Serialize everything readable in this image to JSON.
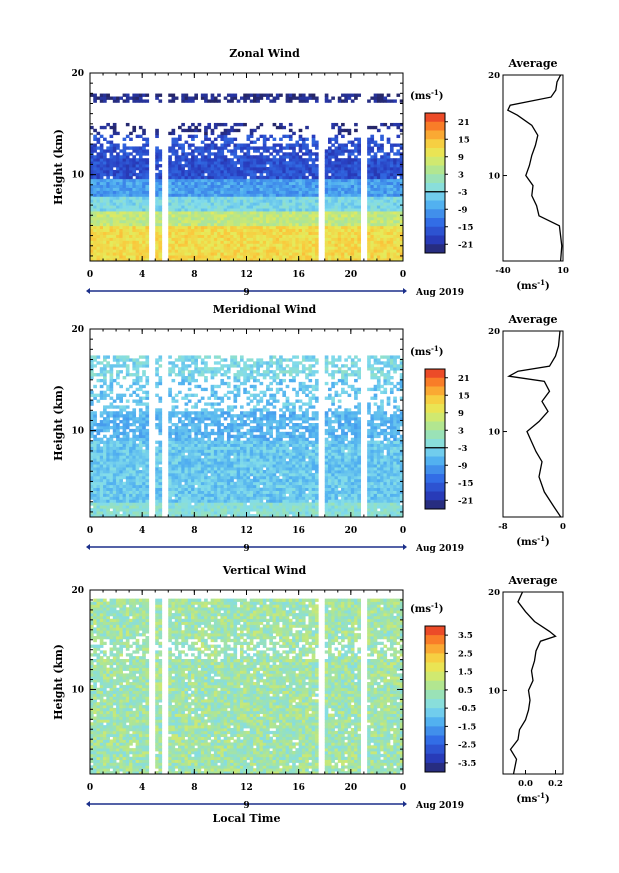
{
  "figure": {
    "date_label": "Aug 2019",
    "day_label": "9",
    "xlabel": "Local Time",
    "average_title": "Average",
    "ylabel": "Height (km)"
  },
  "chart_data": [
    {
      "type": "heatmap",
      "title": "Zonal Wind",
      "xlabel": "",
      "ylabel": "Height (km)",
      "x_ticks": [
        "0",
        "4",
        "8",
        "12",
        "16",
        "20",
        "0"
      ],
      "y_ticks": [
        "10",
        "20"
      ],
      "xlim": [
        0,
        24
      ],
      "ylim": [
        1.5,
        20
      ],
      "colorbar": {
        "unit_label": "(ms",
        "unit_exp": "-1",
        "unit_close": ")",
        "ticks": [
          "21",
          "15",
          "9",
          "3",
          "-3",
          "-9",
          "-15",
          "-21"
        ],
        "range": [
          -24,
          24
        ]
      },
      "data_gaps_hours": [
        [
          4.4,
          4.9
        ],
        [
          5.5,
          5.9
        ],
        [
          17.6,
          17.9
        ],
        [
          20.7,
          21.2
        ]
      ],
      "average_profile": {
        "title": "Average",
        "xlabel": "(ms",
        "xlabel_exp": "-1",
        "xlabel_close": ")",
        "x_ticks": [
          "-40",
          "10"
        ],
        "xlim": [
          -40,
          10
        ],
        "y_ticks": [
          "10",
          "20"
        ],
        "heights": [
          1.5,
          3,
          5,
          6,
          7,
          8,
          9,
          10,
          11,
          12,
          13,
          14,
          15,
          16,
          16.5,
          17,
          17.8,
          18.5,
          19.3,
          20
        ],
        "values": [
          8,
          9,
          7,
          -10,
          -12,
          -16,
          -15,
          -21,
          -18,
          -16,
          -13,
          -11,
          -16,
          -28,
          -36,
          -34,
          0,
          4,
          5,
          8
        ]
      }
    },
    {
      "type": "heatmap",
      "title": "Meridional Wind",
      "xlabel": "",
      "ylabel": "Height (km)",
      "x_ticks": [
        "0",
        "4",
        "8",
        "12",
        "16",
        "20",
        "0"
      ],
      "y_ticks": [
        "10",
        "20"
      ],
      "xlim": [
        0,
        24
      ],
      "ylim": [
        1.5,
        20
      ],
      "colorbar": {
        "unit_label": "(ms",
        "unit_exp": "-1",
        "unit_close": ")",
        "ticks": [
          "21",
          "15",
          "9",
          "3",
          "-3",
          "-9",
          "-15",
          "-21"
        ],
        "range": [
          -24,
          24
        ]
      },
      "data_gaps_hours": [
        [
          4.4,
          4.9
        ],
        [
          5.5,
          5.9
        ],
        [
          17.6,
          17.9
        ],
        [
          20.7,
          21.2
        ]
      ],
      "average_profile": {
        "title": "Average",
        "xlabel": "(ms",
        "xlabel_exp": "-1",
        "xlabel_close": ")",
        "x_ticks": [
          "-8",
          "0"
        ],
        "xlim": [
          -8,
          0
        ],
        "y_ticks": [
          "10",
          "20"
        ],
        "heights": [
          1.5,
          2.5,
          4,
          5.5,
          7,
          8,
          9,
          10,
          11,
          12,
          13,
          14,
          15,
          15.5,
          16,
          16.5,
          17.5,
          18.5,
          20
        ],
        "values": [
          -0.3,
          -1.2,
          -2.5,
          -3.2,
          -2.8,
          -3.6,
          -4.2,
          -4.8,
          -3.2,
          -2.0,
          -2.8,
          -1.8,
          -2.5,
          -7.2,
          -6.0,
          -1.8,
          -1.0,
          -0.6,
          -0.4
        ]
      }
    },
    {
      "type": "heatmap",
      "title": "Vertical Wind",
      "xlabel": "Local Time",
      "ylabel": "Height (km)",
      "x_ticks": [
        "0",
        "4",
        "8",
        "12",
        "16",
        "20",
        "0"
      ],
      "y_ticks": [
        "10",
        "20"
      ],
      "xlim": [
        0,
        24
      ],
      "ylim": [
        1.5,
        20
      ],
      "colorbar": {
        "unit_label": "(ms",
        "unit_exp": "-1",
        "unit_close": ")",
        "ticks": [
          "3.5",
          "2.5",
          "1.5",
          "0.5",
          "-0.5",
          "-1.5",
          "-2.5",
          "-3.5"
        ],
        "range": [
          -4,
          4
        ]
      },
      "data_gaps_hours": [
        [
          4.4,
          4.9
        ],
        [
          5.5,
          5.9
        ],
        [
          17.6,
          17.9
        ],
        [
          20.7,
          21.2
        ]
      ],
      "average_profile": {
        "title": "Average",
        "xlabel": "(ms",
        "xlabel_exp": "-1",
        "xlabel_close": ")",
        "x_ticks": [
          "0.0",
          "0.2"
        ],
        "x_tick_values": [
          0,
          0.2
        ],
        "xlim": [
          -0.15,
          0.25
        ],
        "y_ticks": [
          "10",
          "20"
        ],
        "heights": [
          1.5,
          3,
          4,
          5,
          6,
          7,
          8,
          9,
          10,
          11,
          12,
          13,
          14,
          15,
          15.5,
          16,
          17,
          18,
          19,
          20
        ],
        "values": [
          -0.08,
          -0.06,
          -0.1,
          -0.05,
          -0.04,
          0.0,
          0.02,
          0.03,
          0.02,
          0.05,
          0.04,
          0.06,
          0.07,
          0.1,
          0.2,
          0.16,
          0.06,
          0.0,
          -0.05,
          -0.02
        ]
      }
    }
  ]
}
